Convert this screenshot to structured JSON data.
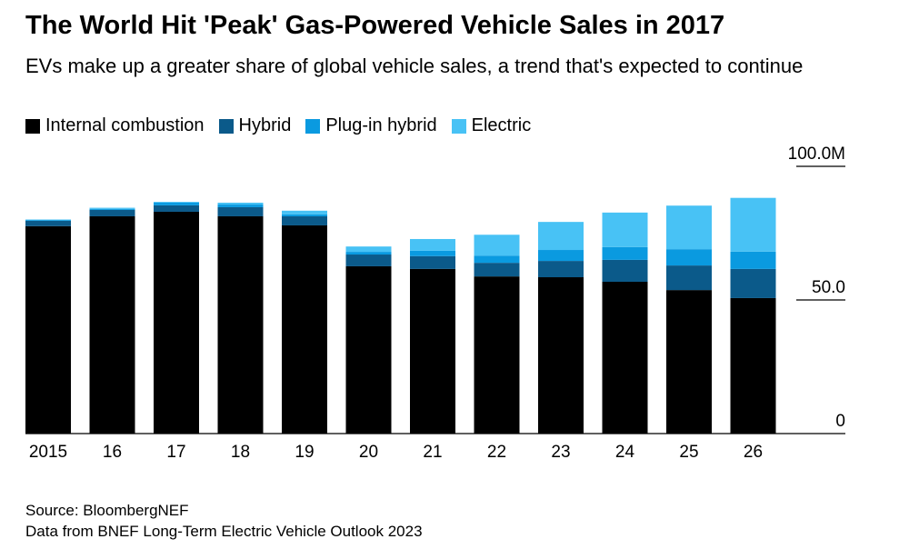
{
  "chart_data": {
    "type": "stacked_bar",
    "title": "The World Hit 'Peak' Gas-Powered Vehicle Sales in 2017",
    "subtitle": "EVs make up a greater share of global vehicle sales, a trend that's expected to continue",
    "source": "Source: BloombergNEF",
    "note": "Data from BNEF Long-Term Electric Vehicle Outlook 2023",
    "categories": [
      "2015",
      "16",
      "17",
      "18",
      "19",
      "20",
      "21",
      "22",
      "23",
      "24",
      "25",
      "26"
    ],
    "series": [
      {
        "name": "Internal combustion",
        "color": "#000000",
        "values": [
          77.6,
          81.3,
          83.0,
          81.3,
          77.9,
          62.6,
          61.6,
          58.8,
          58.5,
          56.8,
          53.7,
          50.7
        ]
      },
      {
        "name": "Hybrid",
        "color": "#0b5a8a",
        "values": [
          2.0,
          2.4,
          2.4,
          3.4,
          3.4,
          4.4,
          4.8,
          5.1,
          6.1,
          8.2,
          9.2,
          10.9
        ]
      },
      {
        "name": "Plug-in hybrid",
        "color": "#0a9ae0",
        "values": [
          0.3,
          0.4,
          1.0,
          1.0,
          0.7,
          1.0,
          2.0,
          2.7,
          4.1,
          4.8,
          6.1,
          6.5
        ]
      },
      {
        "name": "Electric",
        "color": "#48c2f5",
        "values": [
          0.2,
          0.4,
          0.3,
          0.7,
          1.4,
          2.0,
          4.4,
          7.8,
          10.5,
          12.9,
          16.3,
          20.1
        ]
      }
    ],
    "ylim": [
      0,
      100
    ],
    "yticks": [
      0,
      {
        "value": 50,
        "label": "50.0"
      },
      {
        "value": 100,
        "label": "100.0M"
      }
    ],
    "legend": "top-left"
  }
}
